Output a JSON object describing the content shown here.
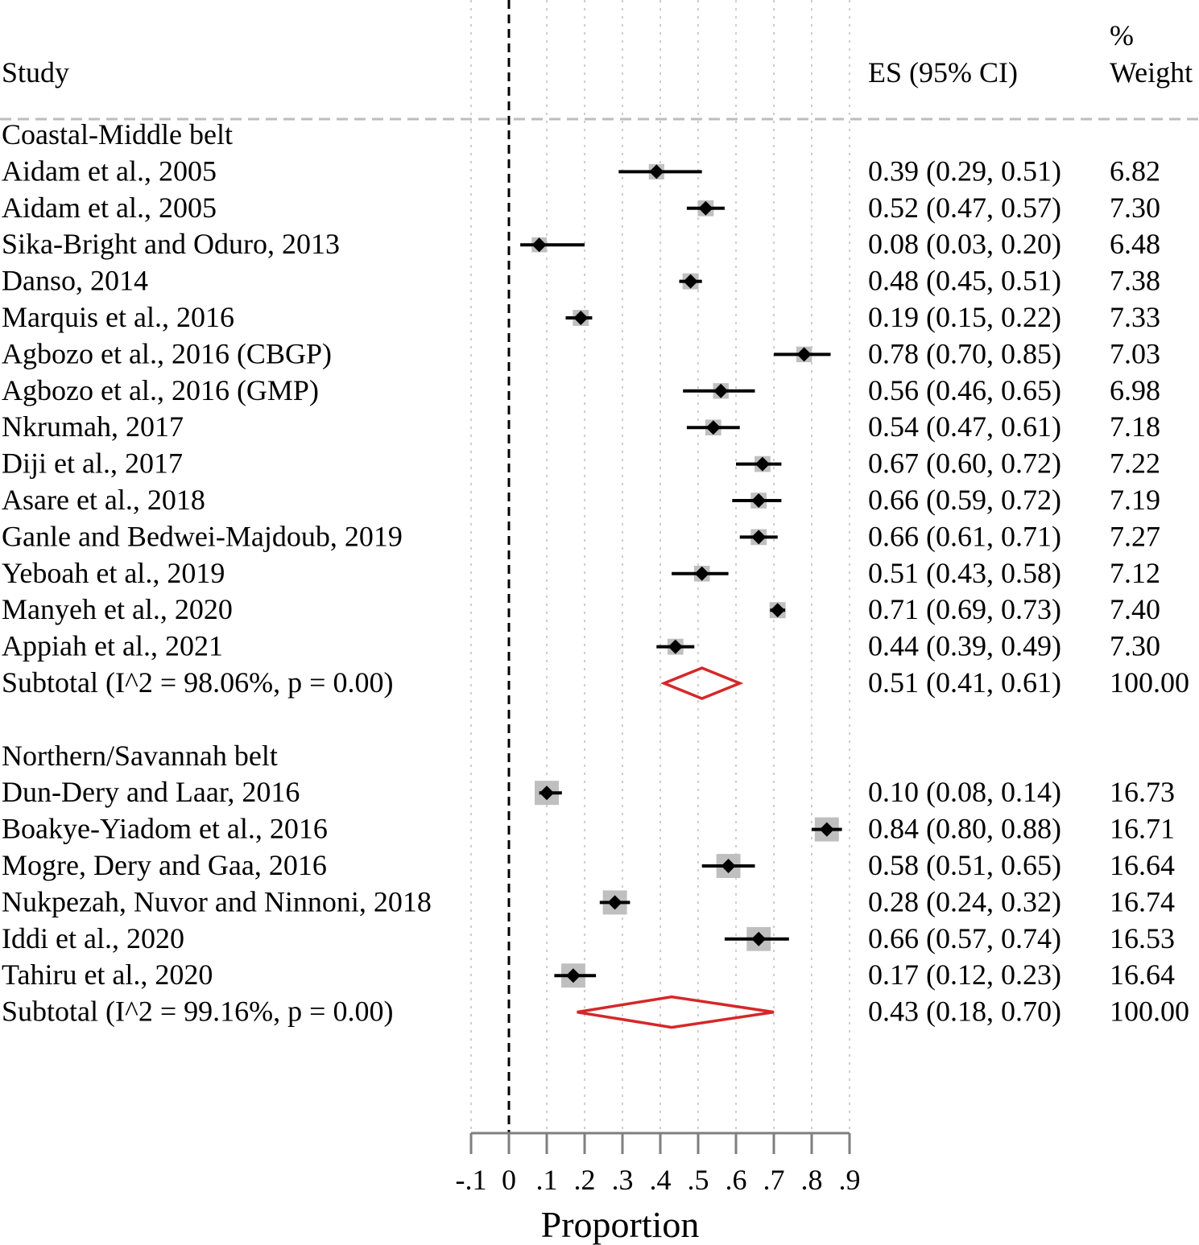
{
  "chart_data": {
    "type": "forest",
    "headers": {
      "study": "Study",
      "es": "ES (95% CI)",
      "weight_line1": "%",
      "weight_line2": "Weight"
    },
    "xlabel": "Proportion",
    "xlim": [
      -0.1,
      0.9
    ],
    "xticks": [
      -0.1,
      0,
      0.1,
      0.2,
      0.3,
      0.4,
      0.5,
      0.6,
      0.7,
      0.8,
      0.9
    ],
    "xtick_labels": [
      "-.1",
      "0",
      ".1",
      ".2",
      ".3",
      ".4",
      ".5",
      ".6",
      ".7",
      ".8",
      ".9"
    ],
    "reference_line": 0,
    "colors": {
      "point": "#000000",
      "weight_box": "#bfbfbf",
      "subtotal_diamond": "#d62728",
      "grid": "#bdbdbd"
    },
    "groups": [
      {
        "name": "Coastal-Middle belt",
        "studies": [
          {
            "label": "Aidam et al., 2005",
            "es": 0.39,
            "lo": 0.29,
            "hi": 0.51,
            "es_text": "0.39 (0.29, 0.51)",
            "weight": "6.82"
          },
          {
            "label": "Aidam et al., 2005",
            "es": 0.52,
            "lo": 0.47,
            "hi": 0.57,
            "es_text": "0.52 (0.47, 0.57)",
            "weight": "7.30"
          },
          {
            "label": "Sika-Bright and Oduro, 2013",
            "es": 0.08,
            "lo": 0.03,
            "hi": 0.2,
            "es_text": "0.08 (0.03, 0.20)",
            "weight": "6.48"
          },
          {
            "label": "Danso, 2014",
            "es": 0.48,
            "lo": 0.45,
            "hi": 0.51,
            "es_text": "0.48 (0.45, 0.51)",
            "weight": "7.38"
          },
          {
            "label": "Marquis et al., 2016",
            "es": 0.19,
            "lo": 0.15,
            "hi": 0.22,
            "es_text": "0.19 (0.15, 0.22)",
            "weight": "7.33"
          },
          {
            "label": "Agbozo et al., 2016 (CBGP)",
            "es": 0.78,
            "lo": 0.7,
            "hi": 0.85,
            "es_text": "0.78 (0.70, 0.85)",
            "weight": "7.03"
          },
          {
            "label": "Agbozo et al., 2016 (GMP)",
            "es": 0.56,
            "lo": 0.46,
            "hi": 0.65,
            "es_text": "0.56 (0.46, 0.65)",
            "weight": "6.98"
          },
          {
            "label": "Nkrumah, 2017",
            "es": 0.54,
            "lo": 0.47,
            "hi": 0.61,
            "es_text": "0.54 (0.47, 0.61)",
            "weight": "7.18"
          },
          {
            "label": "Diji et al., 2017",
            "es": 0.67,
            "lo": 0.6,
            "hi": 0.72,
            "es_text": "0.67 (0.60, 0.72)",
            "weight": "7.22"
          },
          {
            "label": "Asare et al., 2018",
            "es": 0.66,
            "lo": 0.59,
            "hi": 0.72,
            "es_text": "0.66 (0.59, 0.72)",
            "weight": "7.19"
          },
          {
            "label": "Ganle and Bedwei-Majdoub, 2019",
            "es": 0.66,
            "lo": 0.61,
            "hi": 0.71,
            "es_text": "0.66 (0.61, 0.71)",
            "weight": "7.27"
          },
          {
            "label": "Yeboah et al., 2019",
            "es": 0.51,
            "lo": 0.43,
            "hi": 0.58,
            "es_text": "0.51 (0.43, 0.58)",
            "weight": "7.12"
          },
          {
            "label": "Manyeh et al., 2020",
            "es": 0.71,
            "lo": 0.69,
            "hi": 0.73,
            "es_text": "0.71 (0.69, 0.73)",
            "weight": "7.40"
          },
          {
            "label": "Appiah et al., 2021",
            "es": 0.44,
            "lo": 0.39,
            "hi": 0.49,
            "es_text": "0.44 (0.39, 0.49)",
            "weight": "7.30"
          }
        ],
        "subtotal": {
          "label": "Subtotal  (I^2 = 98.06%, p = 0.00)",
          "es": 0.51,
          "lo": 0.41,
          "hi": 0.61,
          "es_text": "0.51 (0.41, 0.61)",
          "weight": "100.00"
        }
      },
      {
        "name": "Northern/Savannah belt",
        "studies": [
          {
            "label": "Dun-Dery and Laar, 2016",
            "es": 0.1,
            "lo": 0.08,
            "hi": 0.14,
            "es_text": "0.10 (0.08, 0.14)",
            "weight": "16.73"
          },
          {
            "label": "Boakye-Yiadom et al., 2016",
            "es": 0.84,
            "lo": 0.8,
            "hi": 0.88,
            "es_text": "0.84 (0.80, 0.88)",
            "weight": "16.71"
          },
          {
            "label": "Mogre, Dery and Gaa, 2016",
            "es": 0.58,
            "lo": 0.51,
            "hi": 0.65,
            "es_text": "0.58 (0.51, 0.65)",
            "weight": "16.64"
          },
          {
            "label": "Nukpezah, Nuvor and Ninnoni, 2018",
            "es": 0.28,
            "lo": 0.24,
            "hi": 0.32,
            "es_text": "0.28 (0.24, 0.32)",
            "weight": "16.74"
          },
          {
            "label": "Iddi et al., 2020",
            "es": 0.66,
            "lo": 0.57,
            "hi": 0.74,
            "es_text": "0.66 (0.57, 0.74)",
            "weight": "16.53"
          },
          {
            "label": "Tahiru et al., 2020",
            "es": 0.17,
            "lo": 0.12,
            "hi": 0.23,
            "es_text": "0.17 (0.12, 0.23)",
            "weight": "16.64"
          }
        ],
        "subtotal": {
          "label": "Subtotal  (I^2 = 99.16%, p = 0.00)",
          "es": 0.43,
          "lo": 0.18,
          "hi": 0.7,
          "es_text": "0.43 (0.18, 0.70)",
          "weight": "100.00"
        }
      }
    ]
  }
}
